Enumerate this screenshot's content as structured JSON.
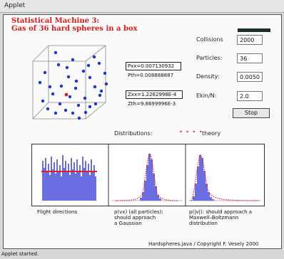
{
  "window": {
    "menu_label": "Applet"
  },
  "header": {
    "title_line1": "Statistical Machine 3:",
    "title_line2": "Gas of 36 hard spheres in a box"
  },
  "controls": {
    "collisions_label": "Collisions",
    "collisions_value": "2000",
    "particles_label": "Particles:",
    "particles_value": "36",
    "density_label": "Density:",
    "density_value": "0.0050",
    "ekin_label": "Ekin/N:",
    "ekin_value": "2.0",
    "stop_label": "Stop"
  },
  "readouts": {
    "pxx": "Pxx=0.007130932",
    "pth": "Pth=0.008888887",
    "zxx": "Zxx=1.2262998E-4",
    "zth": "Zth=9.8699996E-3"
  },
  "distributions": {
    "label": "Distributions:",
    "theory_marker": "• • • •",
    "theory_label": "theory",
    "captions": {
      "flight": "Flight directions",
      "gauss_l1": "p(vx) (all particles):",
      "gauss_l2": "should approach",
      "gauss_l3": "a Gaussian",
      "mb_l1": "p(|v|): should approach a",
      "mb_l2": "Maxwell–Boltzmann",
      "mb_l3": "distribution"
    }
  },
  "footer": {
    "copyright": "Hardspheres.java / Copyright F. Vesely 2000"
  },
  "status": {
    "text": "Applet started."
  },
  "colors": {
    "title": "#d81a1a",
    "particle": "#1d35c8",
    "tagged_particle": "#dd1d1d",
    "histogram": "#6a6ee0",
    "theory": "#e01c2c"
  }
}
